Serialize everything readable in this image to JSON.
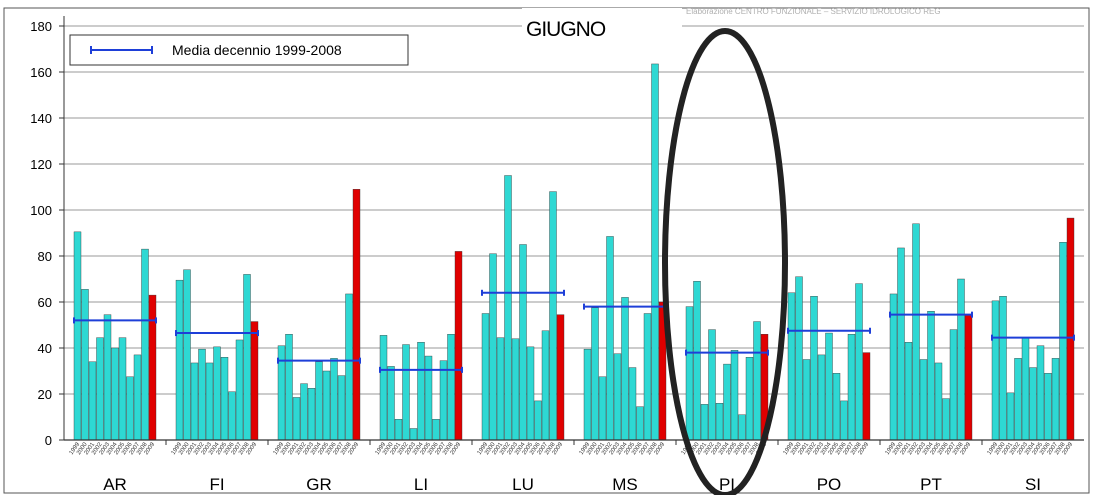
{
  "chart_data": {
    "type": "bar",
    "title": "GIUGNO",
    "subtitle": "Elaborazione CENTRO FUNZIONALE – SERVIZIO IDROLOGICO REG",
    "ylim": [
      0,
      180
    ],
    "yticks": [
      0,
      20,
      40,
      60,
      80,
      100,
      120,
      140,
      160,
      180
    ],
    "grid": true,
    "legend": {
      "position": "top-left",
      "entries": [
        "Media decennio 1999-2008"
      ]
    },
    "year_labels": [
      "1999",
      "2000",
      "2001",
      "2002",
      "2003",
      "2004",
      "2005",
      "2006",
      "2007",
      "2008",
      "2009"
    ],
    "groups": [
      {
        "name": "AR",
        "values": [
          90.5,
          65.5,
          34,
          44.5,
          54.5,
          40,
          44.5,
          27.5,
          37,
          83,
          63
        ],
        "media": 52
      },
      {
        "name": "FI",
        "values": [
          69.5,
          74,
          33.5,
          39.5,
          33.5,
          40.5,
          36,
          21,
          43.5,
          72,
          51.5
        ],
        "media": 46.5
      },
      {
        "name": "GR",
        "values": [
          41,
          46,
          18.5,
          24.5,
          22.5,
          34,
          30,
          35.5,
          28,
          63.5,
          109
        ],
        "media": 34.5
      },
      {
        "name": "LI",
        "values": [
          45.5,
          32,
          9,
          41.5,
          5,
          42.5,
          36.5,
          9,
          34.5,
          46,
          82
        ],
        "media": 30.5
      },
      {
        "name": "LU",
        "values": [
          55,
          81,
          44.5,
          115,
          44,
          85,
          40.5,
          17,
          47.5,
          108,
          54.5
        ],
        "media": 64
      },
      {
        "name": "MS",
        "values": [
          39.5,
          57.5,
          27.5,
          88.5,
          37.5,
          62,
          31.5,
          14.5,
          55,
          163.5,
          60
        ],
        "media": 58
      },
      {
        "name": "PI",
        "values": [
          58,
          69,
          15.5,
          48,
          16,
          33,
          39,
          11,
          36,
          51.5,
          46
        ],
        "media": 38
      },
      {
        "name": "PO",
        "values": [
          64,
          71,
          35,
          62.5,
          37,
          46.5,
          29,
          17,
          46,
          68,
          38
        ],
        "media": 47.5
      },
      {
        "name": "PT",
        "values": [
          63.5,
          83.5,
          42.5,
          94,
          35,
          56,
          33.5,
          18,
          48,
          70,
          54.5
        ],
        "media": 54.5
      },
      {
        "name": "SI",
        "values": [
          60.5,
          62.5,
          20.5,
          35.5,
          44.5,
          31.5,
          41,
          29,
          35.5,
          86,
          96.5
        ],
        "media": 44.5
      }
    ],
    "colors": {
      "bar": "#2ED8D3",
      "last_bar": "#E00000",
      "media": "#1E3FD8",
      "grid": "#9a9a9a",
      "ellipse": "#222222"
    },
    "highlight_group": "PI"
  }
}
